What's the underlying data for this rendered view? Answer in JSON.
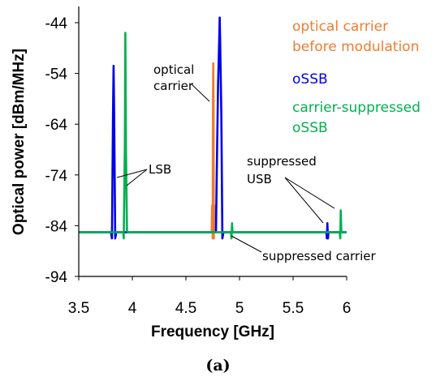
{
  "chart_data": {
    "type": "line",
    "xlabel": "Frequency [GHz]",
    "ylabel": "Optical power [dBm/MHz]",
    "xlim": [
      3.5,
      6.0
    ],
    "ylim": [
      -94,
      -40
    ],
    "x_ticks": [
      "3.5",
      "4",
      "4.5",
      "5",
      "5.5",
      "6"
    ],
    "y_ticks": [
      "-44",
      "-54",
      "-64",
      "-74",
      "-84",
      "-94"
    ],
    "noise_floor": -85.3,
    "grid": false,
    "legend_position": "top-right",
    "series": [
      {
        "name": "optical carrier before modulation",
        "color": "#ED7D31",
        "x": [
          3.5,
          4.74,
          4.745,
          4.75,
          4.752,
          4.755,
          4.758,
          4.76,
          4.765,
          4.77,
          6.0
        ],
        "y": [
          -85.3,
          -85.3,
          -80,
          -86.5,
          -60,
          -52,
          -62,
          -86.5,
          -80,
          -85.3,
          -85.3
        ]
      },
      {
        "name": "oSSB",
        "color": "#0000E8",
        "x": [
          3.5,
          3.8,
          3.81,
          3.82,
          3.825,
          3.83,
          3.84,
          3.85,
          4.78,
          4.79,
          4.8,
          4.81,
          4.815,
          4.82,
          4.83,
          4.84,
          4.85,
          5.81,
          5.815,
          5.82,
          5.825,
          5.83,
          6.0
        ],
        "y": [
          -85.3,
          -85.3,
          -86.5,
          -62,
          -52.5,
          -62,
          -86.5,
          -85.3,
          -85.3,
          -70,
          -56,
          -48,
          -43,
          -48,
          -62,
          -86.5,
          -85.3,
          -85.3,
          -86.5,
          -83.5,
          -86.5,
          -85.3,
          -85.3
        ]
      },
      {
        "name": "carrier-suppressed oSSB",
        "color": "#00B050",
        "x": [
          3.5,
          3.915,
          3.92,
          3.93,
          3.935,
          3.94,
          3.95,
          3.96,
          4.92,
          4.925,
          4.93,
          4.935,
          5.935,
          5.94,
          5.945,
          5.95,
          6.0
        ],
        "y": [
          -85.3,
          -85.3,
          -86.5,
          -68,
          -46,
          -68,
          -85,
          -85.3,
          -85.3,
          -86.5,
          -83.5,
          -85.3,
          -85.3,
          -86.5,
          -81,
          -85.3,
          -85.3
        ]
      }
    ],
    "annotations": [
      {
        "label": "optical carrier",
        "x": 4.58,
        "y": -53
      },
      {
        "label": "LSB",
        "x": 4.2,
        "y": -71.5
      },
      {
        "label": "suppressed USB",
        "x": 5.3,
        "y": -70
      },
      {
        "label": "suppressed carrier",
        "x": 5.5,
        "y": -86
      }
    ]
  },
  "caption": "(a)"
}
